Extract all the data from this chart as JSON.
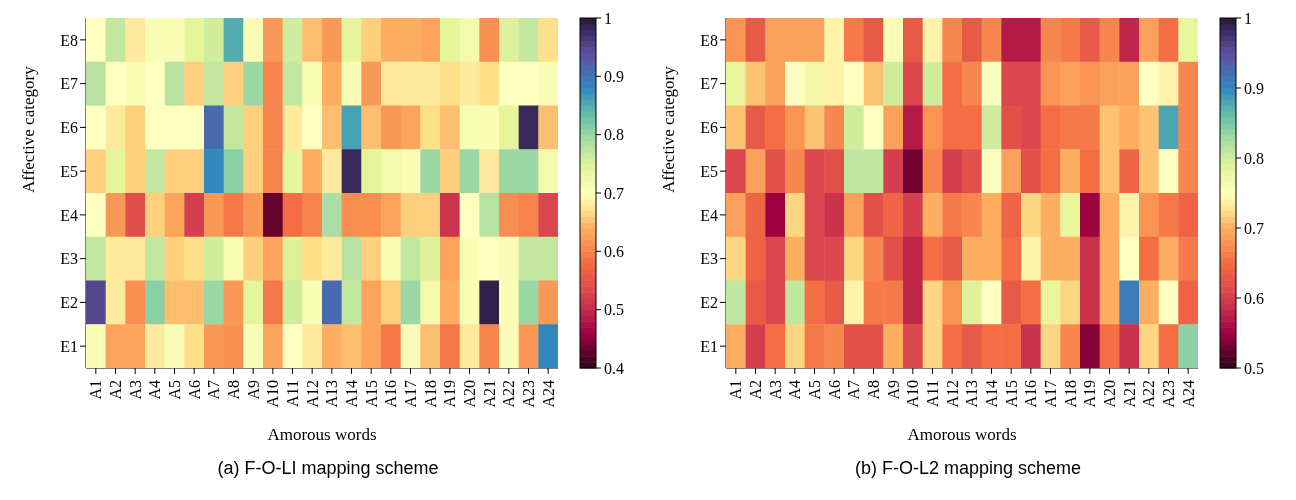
{
  "chart_data": [
    {
      "type": "heatmap",
      "xlabel": "Amorous words",
      "ylabel": "Affective category",
      "annotations": [
        "(a) F-O-LI mapping scheme"
      ],
      "categories": [
        "A1",
        "A2",
        "A3",
        "A4",
        "A5",
        "A6",
        "A7",
        "A8",
        "A9",
        "A10",
        "A11",
        "A12",
        "A13",
        "A14",
        "A15",
        "A16",
        "A17",
        "A18",
        "A19",
        "A20",
        "A21",
        "A22",
        "A23",
        "A24"
      ],
      "y_categories": [
        "E8",
        "E7",
        "E6",
        "E5",
        "E4",
        "E3",
        "E2",
        "E1"
      ],
      "cells": [
        [
          0.7,
          0.77,
          0.68,
          0.71,
          0.71,
          0.74,
          0.76,
          0.85,
          0.71,
          0.62,
          0.76,
          0.65,
          0.62,
          0.74,
          0.66,
          0.64,
          0.64,
          0.63,
          0.74,
          0.72,
          0.61,
          0.75,
          0.77,
          0.67
        ],
        [
          0.78,
          0.7,
          0.71,
          0.7,
          0.78,
          0.66,
          0.77,
          0.66,
          0.8,
          0.6,
          0.77,
          0.71,
          0.64,
          0.71,
          0.62,
          0.68,
          0.68,
          0.68,
          0.67,
          0.68,
          0.67,
          0.7,
          0.7,
          0.71
        ],
        [
          0.7,
          0.68,
          0.66,
          0.7,
          0.7,
          0.7,
          0.91,
          0.77,
          0.66,
          0.6,
          0.68,
          0.7,
          0.65,
          0.86,
          0.65,
          0.62,
          0.63,
          0.67,
          0.65,
          0.71,
          0.71,
          0.74,
          0.98,
          0.65
        ],
        [
          0.66,
          0.74,
          0.66,
          0.77,
          0.66,
          0.66,
          0.88,
          0.81,
          0.66,
          0.6,
          0.74,
          0.64,
          0.68,
          0.98,
          0.74,
          0.72,
          0.71,
          0.8,
          0.66,
          0.8,
          0.68,
          0.8,
          0.8,
          0.72
        ],
        [
          0.7,
          0.62,
          0.54,
          0.66,
          0.63,
          0.52,
          0.62,
          0.59,
          0.62,
          0.43,
          0.58,
          0.6,
          0.79,
          0.61,
          0.61,
          0.63,
          0.66,
          0.66,
          0.51,
          0.7,
          0.78,
          0.61,
          0.6,
          0.53
        ],
        [
          0.77,
          0.68,
          0.68,
          0.77,
          0.66,
          0.67,
          0.76,
          0.71,
          0.66,
          0.63,
          0.75,
          0.67,
          0.68,
          0.78,
          0.66,
          0.71,
          0.77,
          0.75,
          0.63,
          0.71,
          0.7,
          0.71,
          0.77,
          0.77
        ],
        [
          0.95,
          0.68,
          0.61,
          0.81,
          0.65,
          0.65,
          0.8,
          0.62,
          0.74,
          0.59,
          0.76,
          0.71,
          0.91,
          0.77,
          0.63,
          0.66,
          0.8,
          0.72,
          0.64,
          0.71,
          0.99,
          0.71,
          0.8,
          0.62
        ],
        [
          0.71,
          0.63,
          0.63,
          0.68,
          0.71,
          0.67,
          0.62,
          0.61,
          0.71,
          0.63,
          0.7,
          0.68,
          0.64,
          0.65,
          0.63,
          0.59,
          0.71,
          0.65,
          0.59,
          0.68,
          0.6,
          0.71,
          0.62,
          0.88
        ]
      ],
      "clim": [
        0.4,
        1
      ],
      "cticks": [
        0.4,
        0.5,
        0.6,
        0.7,
        0.8,
        0.9,
        1
      ]
    },
    {
      "type": "heatmap",
      "xlabel": "Amorous words",
      "ylabel": "Affective category",
      "annotations": [
        "(b) F-O-L2 mapping scheme"
      ],
      "categories": [
        "A1",
        "A2",
        "A3",
        "A4",
        "A5",
        "A6",
        "A7",
        "A8",
        "A9",
        "A10",
        "A11",
        "A12",
        "A13",
        "A14",
        "A15",
        "A16",
        "A17",
        "A18",
        "A19",
        "A20",
        "A21",
        "A22",
        "A23",
        "A24"
      ],
      "y_categories": [
        "E8",
        "E7",
        "E6",
        "E5",
        "E4",
        "E3",
        "E2",
        "E1"
      ],
      "cells": [
        [
          0.68,
          0.63,
          0.69,
          0.69,
          0.69,
          0.74,
          0.66,
          0.63,
          0.76,
          0.63,
          0.74,
          0.67,
          0.63,
          0.67,
          0.57,
          0.57,
          0.67,
          0.66,
          0.63,
          0.67,
          0.58,
          0.69,
          0.65,
          0.78
        ],
        [
          0.78,
          0.71,
          0.69,
          0.75,
          0.77,
          0.74,
          0.75,
          0.71,
          0.8,
          0.61,
          0.8,
          0.65,
          0.67,
          0.75,
          0.61,
          0.61,
          0.68,
          0.69,
          0.68,
          0.69,
          0.69,
          0.75,
          0.74,
          0.67
        ],
        [
          0.71,
          0.63,
          0.65,
          0.68,
          0.71,
          0.67,
          0.8,
          0.75,
          0.69,
          0.57,
          0.68,
          0.65,
          0.65,
          0.8,
          0.62,
          0.61,
          0.65,
          0.66,
          0.66,
          0.71,
          0.7,
          0.71,
          0.88,
          0.67
        ],
        [
          0.61,
          0.69,
          0.62,
          0.67,
          0.61,
          0.62,
          0.81,
          0.81,
          0.6,
          0.53,
          0.67,
          0.6,
          0.62,
          0.75,
          0.69,
          0.62,
          0.65,
          0.7,
          0.65,
          0.71,
          0.64,
          0.71,
          0.75,
          0.67
        ],
        [
          0.69,
          0.64,
          0.55,
          0.72,
          0.61,
          0.59,
          0.69,
          0.62,
          0.64,
          0.6,
          0.7,
          0.66,
          0.67,
          0.7,
          0.64,
          0.72,
          0.7,
          0.78,
          0.55,
          0.7,
          0.74,
          0.68,
          0.66,
          0.64
        ],
        [
          0.72,
          0.64,
          0.61,
          0.7,
          0.61,
          0.61,
          0.72,
          0.67,
          0.62,
          0.58,
          0.65,
          0.63,
          0.7,
          0.7,
          0.65,
          0.74,
          0.7,
          0.7,
          0.59,
          0.7,
          0.75,
          0.65,
          0.7,
          0.66
        ],
        [
          0.81,
          0.63,
          0.61,
          0.81,
          0.65,
          0.63,
          0.74,
          0.66,
          0.66,
          0.58,
          0.72,
          0.68,
          0.79,
          0.75,
          0.63,
          0.65,
          0.78,
          0.72,
          0.59,
          0.7,
          0.91,
          0.7,
          0.75,
          0.64
        ],
        [
          0.7,
          0.6,
          0.65,
          0.72,
          0.66,
          0.67,
          0.62,
          0.62,
          0.7,
          0.61,
          0.72,
          0.65,
          0.63,
          0.65,
          0.65,
          0.59,
          0.72,
          0.67,
          0.54,
          0.65,
          0.59,
          0.72,
          0.65,
          0.84
        ]
      ],
      "clim": [
        0.5,
        1
      ],
      "cticks": [
        0.5,
        0.6,
        0.7,
        0.8,
        0.9,
        1
      ]
    }
  ]
}
